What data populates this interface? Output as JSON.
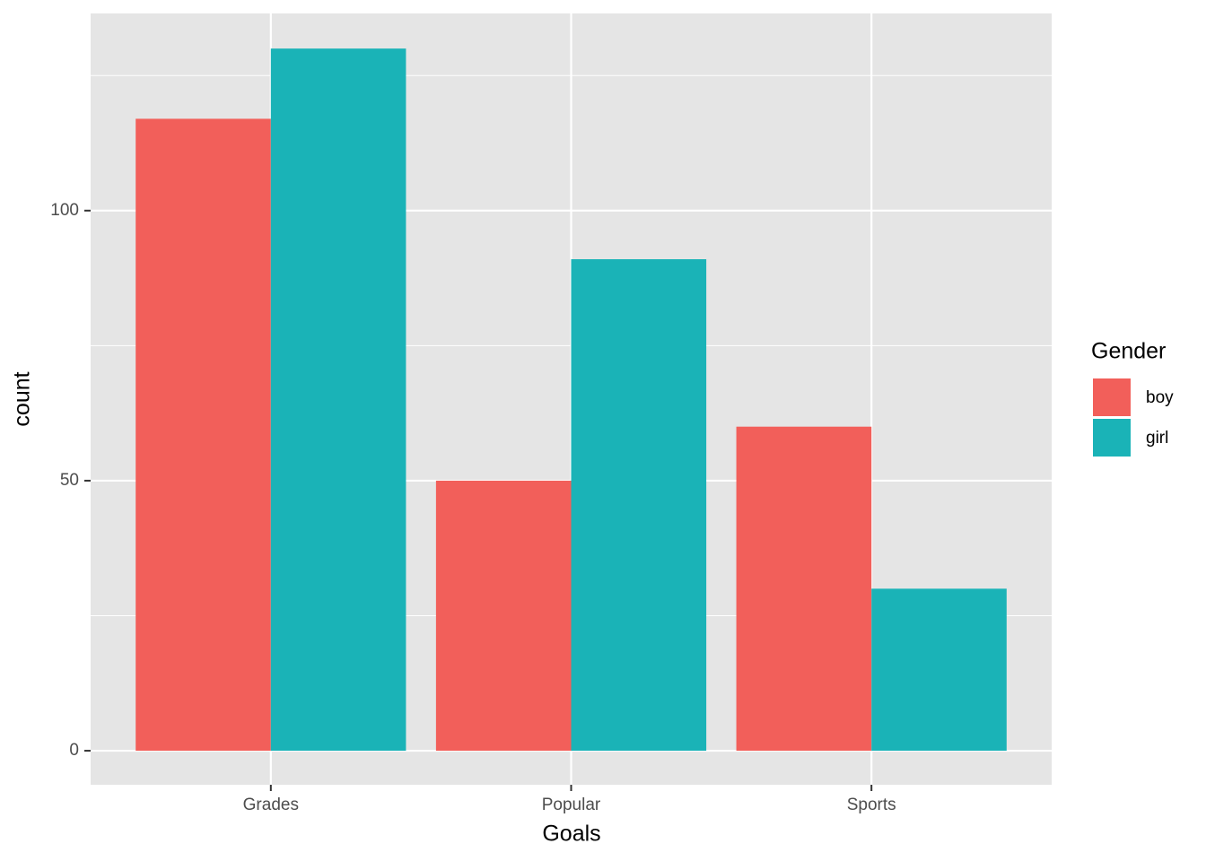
{
  "chart_data": {
    "type": "bar",
    "x_label": "Goals",
    "y_label": "count",
    "categories": [
      "Grades",
      "Popular",
      "Sports"
    ],
    "series": [
      {
        "name": "boy",
        "color": "#f25f5a",
        "values": [
          117,
          50,
          60
        ]
      },
      {
        "name": "girl",
        "color": "#1ab3b7",
        "values": [
          130,
          91,
          30
        ]
      }
    ],
    "legend_title": "Gender",
    "legend_position": "right",
    "ylim": [
      -6.3,
      136.5
    ],
    "yticks": [
      0,
      50,
      100
    ],
    "minor_yticks": [
      25,
      75,
      125
    ],
    "grid": true
  }
}
